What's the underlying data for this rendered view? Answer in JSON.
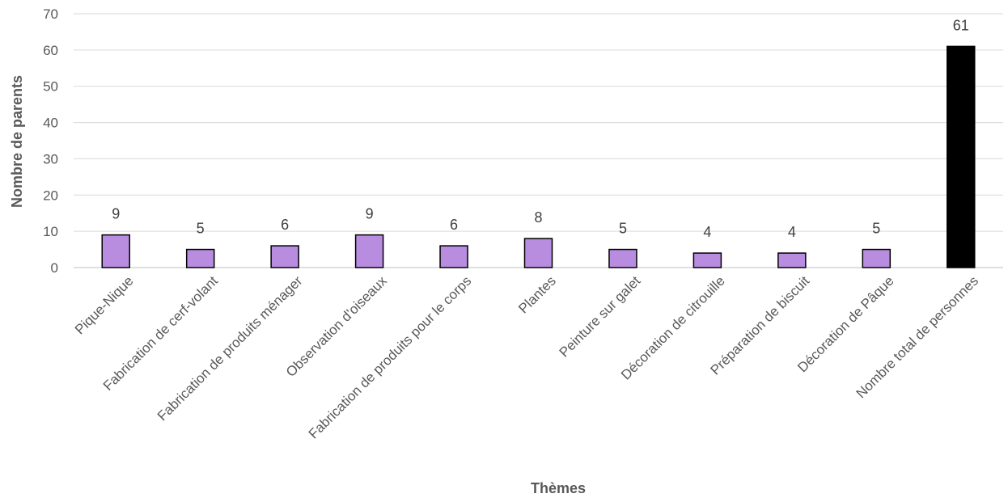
{
  "chart_data": {
    "type": "bar",
    "title": "",
    "xlabel": "Thèmes",
    "ylabel": "Nombre de parents",
    "ylim": [
      0,
      70
    ],
    "yticks": [
      0,
      10,
      20,
      30,
      40,
      50,
      60,
      70
    ],
    "categories": [
      "Pique-Nique",
      "Fabrication de cerf-volant",
      "Fabrication de produits ménager",
      "Observation d'oiseaux",
      "Fabrication de produits pour le corps",
      "Plantes",
      "Peinture sur galet",
      "Décoration de citrouille",
      "Préparation de biscuit",
      "Décoration de Pâque",
      "Nombre total de personnes"
    ],
    "values": [
      9,
      5,
      6,
      9,
      6,
      8,
      5,
      4,
      4,
      5,
      61
    ],
    "bar_colors": [
      "#b88de0",
      "#b88de0",
      "#b88de0",
      "#b88de0",
      "#b88de0",
      "#b88de0",
      "#b88de0",
      "#b88de0",
      "#b88de0",
      "#b88de0",
      "#000000"
    ],
    "bar_outline_color": "#000000",
    "grid": true,
    "legend": "none"
  }
}
